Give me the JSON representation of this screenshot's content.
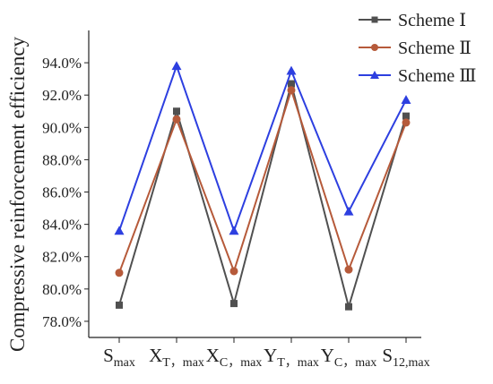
{
  "chart_data": {
    "type": "line",
    "ylabel": "Compressive reinforcement efficiency",
    "xlabel": "",
    "categories": [
      {
        "main": "S",
        "sub": "max"
      },
      {
        "main": "X",
        "sub": "T，max"
      },
      {
        "main": "X",
        "sub": "C，max"
      },
      {
        "main": "Y",
        "sub": "T，max"
      },
      {
        "main": "Y",
        "sub": "C，max"
      },
      {
        "main": "S",
        "sub": "12,max"
      }
    ],
    "yticks": [
      "78.0%",
      "80.0%",
      "82.0%",
      "84.0%",
      "86.0%",
      "88.0%",
      "90.0%",
      "92.0%",
      "94.0%"
    ],
    "ylim": [
      77.0,
      96.0
    ],
    "legend_position": "top-right",
    "series": [
      {
        "name": "Scheme Ⅰ",
        "marker": "square",
        "color": "#505050",
        "values": [
          79.0,
          91.0,
          79.1,
          92.7,
          78.9,
          90.7
        ]
      },
      {
        "name": "Scheme Ⅱ",
        "marker": "circle",
        "color": "#b65a3a",
        "values": [
          81.0,
          90.5,
          81.1,
          92.3,
          81.2,
          90.3
        ]
      },
      {
        "name": "Scheme Ⅲ",
        "marker": "triangle",
        "color": "#2d3fe0",
        "values": [
          83.6,
          93.8,
          83.6,
          93.5,
          84.8,
          91.7
        ]
      }
    ]
  }
}
